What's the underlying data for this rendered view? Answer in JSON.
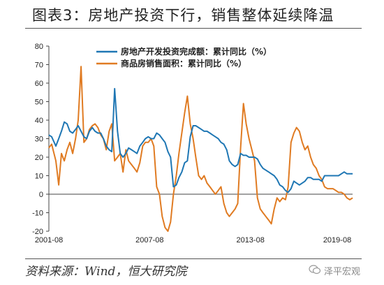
{
  "header": {
    "title": "图表3：房地产投资下行，销售整体延续降温"
  },
  "footer": {
    "source": "资料来源：Wind，恒大研究院",
    "watermark": "泽平宏观"
  },
  "chart_data": {
    "type": "line",
    "ylim": [
      -20,
      80
    ],
    "yticks": [
      -20,
      -10,
      0,
      10,
      20,
      30,
      40,
      50,
      60,
      70,
      80
    ],
    "xtick_labels": [
      "2001-08",
      "2007-08",
      "2013-08",
      "2019-08"
    ],
    "x_range": [
      2001.583,
      2019.667
    ],
    "grid": false,
    "legend_position": "top-center",
    "colors": {
      "investment": "#1f77b4",
      "sales": "#e07b22"
    },
    "series": [
      {
        "name": "房地产开发投资完成额：累计同比（%）",
        "color": "#1f77b4",
        "points": [
          [
            2001.58,
            32
          ],
          [
            2001.75,
            31
          ],
          [
            2002.0,
            26
          ],
          [
            2002.17,
            30
          ],
          [
            2002.33,
            34
          ],
          [
            2002.5,
            39
          ],
          [
            2002.67,
            38
          ],
          [
            2002.83,
            34
          ],
          [
            2003.0,
            33
          ],
          [
            2003.17,
            35
          ],
          [
            2003.33,
            37
          ],
          [
            2003.5,
            34
          ],
          [
            2003.67,
            31
          ],
          [
            2003.83,
            30
          ],
          [
            2004.0,
            34
          ],
          [
            2004.17,
            36
          ],
          [
            2004.33,
            34
          ],
          [
            2004.5,
            33
          ],
          [
            2004.67,
            33
          ],
          [
            2004.83,
            30
          ],
          [
            2005.0,
            26
          ],
          [
            2005.17,
            24
          ],
          [
            2005.33,
            23
          ],
          [
            2005.5,
            57
          ],
          [
            2005.67,
            34
          ],
          [
            2005.83,
            22
          ],
          [
            2006.0,
            20
          ],
          [
            2006.17,
            22
          ],
          [
            2006.33,
            25
          ],
          [
            2006.5,
            24
          ],
          [
            2006.67,
            23
          ],
          [
            2006.83,
            22
          ],
          [
            2007.0,
            26
          ],
          [
            2007.17,
            28
          ],
          [
            2007.33,
            30
          ],
          [
            2007.5,
            31
          ],
          [
            2007.67,
            30
          ],
          [
            2007.83,
            30
          ],
          [
            2008.0,
            33
          ],
          [
            2008.17,
            32
          ],
          [
            2008.33,
            30
          ],
          [
            2008.5,
            28
          ],
          [
            2008.67,
            23
          ],
          [
            2008.83,
            20
          ],
          [
            2009.0,
            4
          ],
          [
            2009.17,
            5
          ],
          [
            2009.33,
            9
          ],
          [
            2009.5,
            12
          ],
          [
            2009.67,
            17
          ],
          [
            2009.83,
            18
          ],
          [
            2010.0,
            31
          ],
          [
            2010.17,
            37
          ],
          [
            2010.33,
            37
          ],
          [
            2010.5,
            36
          ],
          [
            2010.67,
            35
          ],
          [
            2010.83,
            34
          ],
          [
            2011.0,
            34
          ],
          [
            2011.17,
            33
          ],
          [
            2011.33,
            32
          ],
          [
            2011.5,
            31
          ],
          [
            2011.67,
            30
          ],
          [
            2011.83,
            28
          ],
          [
            2012.0,
            27
          ],
          [
            2012.17,
            24
          ],
          [
            2012.33,
            18
          ],
          [
            2012.5,
            16
          ],
          [
            2012.67,
            15
          ],
          [
            2012.83,
            16
          ],
          [
            2013.0,
            22
          ],
          [
            2013.17,
            21
          ],
          [
            2013.33,
            21
          ],
          [
            2013.5,
            20
          ],
          [
            2013.67,
            20
          ],
          [
            2013.83,
            20
          ],
          [
            2014.0,
            19
          ],
          [
            2014.17,
            16
          ],
          [
            2014.33,
            14
          ],
          [
            2014.5,
            13
          ],
          [
            2014.67,
            12
          ],
          [
            2014.83,
            11
          ],
          [
            2015.0,
            10
          ],
          [
            2015.17,
            8
          ],
          [
            2015.33,
            5
          ],
          [
            2015.5,
            4
          ],
          [
            2015.67,
            2
          ],
          [
            2015.83,
            1
          ],
          [
            2016.0,
            3
          ],
          [
            2016.17,
            7
          ],
          [
            2016.33,
            6
          ],
          [
            2016.5,
            5
          ],
          [
            2016.67,
            6
          ],
          [
            2016.83,
            7
          ],
          [
            2017.0,
            9
          ],
          [
            2017.17,
            9
          ],
          [
            2017.33,
            8
          ],
          [
            2017.5,
            8
          ],
          [
            2017.67,
            8
          ],
          [
            2017.83,
            7
          ],
          [
            2018.0,
            10
          ],
          [
            2018.17,
            10
          ],
          [
            2018.33,
            10
          ],
          [
            2018.5,
            10
          ],
          [
            2018.67,
            10
          ],
          [
            2018.83,
            10
          ],
          [
            2019.0,
            11
          ],
          [
            2019.17,
            12
          ],
          [
            2019.33,
            11
          ],
          [
            2019.5,
            11
          ],
          [
            2019.67,
            11
          ]
        ]
      },
      {
        "name": "商品房销售面积：累计同比（%）",
        "color": "#e07b22",
        "points": [
          [
            2001.58,
            25
          ],
          [
            2001.75,
            27
          ],
          [
            2002.0,
            18
          ],
          [
            2002.17,
            5
          ],
          [
            2002.33,
            22
          ],
          [
            2002.5,
            18
          ],
          [
            2002.67,
            24
          ],
          [
            2002.83,
            28
          ],
          [
            2003.0,
            22
          ],
          [
            2003.17,
            30
          ],
          [
            2003.33,
            40
          ],
          [
            2003.5,
            69
          ],
          [
            2003.67,
            28
          ],
          [
            2003.83,
            30
          ],
          [
            2004.0,
            35
          ],
          [
            2004.17,
            37
          ],
          [
            2004.33,
            38
          ],
          [
            2004.5,
            36
          ],
          [
            2004.67,
            32
          ],
          [
            2004.83,
            30
          ],
          [
            2005.0,
            24
          ],
          [
            2005.17,
            34
          ],
          [
            2005.33,
            38
          ],
          [
            2005.5,
            18
          ],
          [
            2005.67,
            20
          ],
          [
            2005.83,
            22
          ],
          [
            2006.0,
            12
          ],
          [
            2006.17,
            24
          ],
          [
            2006.33,
            18
          ],
          [
            2006.5,
            16
          ],
          [
            2006.67,
            14
          ],
          [
            2006.83,
            12
          ],
          [
            2007.0,
            17
          ],
          [
            2007.17,
            26
          ],
          [
            2007.33,
            28
          ],
          [
            2007.5,
            28
          ],
          [
            2007.67,
            30
          ],
          [
            2007.83,
            26
          ],
          [
            2008.0,
            4
          ],
          [
            2008.17,
            0
          ],
          [
            2008.33,
            -12
          ],
          [
            2008.5,
            -18
          ],
          [
            2008.67,
            -20
          ],
          [
            2008.83,
            -15
          ],
          [
            2009.0,
            0
          ],
          [
            2009.17,
            10
          ],
          [
            2009.33,
            22
          ],
          [
            2009.5,
            33
          ],
          [
            2009.67,
            44
          ],
          [
            2009.83,
            53
          ],
          [
            2010.0,
            38
          ],
          [
            2010.17,
            30
          ],
          [
            2010.33,
            20
          ],
          [
            2010.5,
            10
          ],
          [
            2010.67,
            8
          ],
          [
            2010.83,
            10
          ],
          [
            2011.0,
            6
          ],
          [
            2011.17,
            4
          ],
          [
            2011.33,
            2
          ],
          [
            2011.5,
            0
          ],
          [
            2011.67,
            2
          ],
          [
            2011.83,
            4
          ],
          [
            2012.0,
            -5
          ],
          [
            2012.17,
            -10
          ],
          [
            2012.33,
            -12
          ],
          [
            2012.5,
            -10
          ],
          [
            2012.67,
            -8
          ],
          [
            2012.83,
            -5
          ],
          [
            2013.0,
            25
          ],
          [
            2013.17,
            49
          ],
          [
            2013.33,
            38
          ],
          [
            2013.5,
            30
          ],
          [
            2013.67,
            24
          ],
          [
            2013.83,
            18
          ],
          [
            2014.0,
            -2
          ],
          [
            2014.17,
            -8
          ],
          [
            2014.33,
            -10
          ],
          [
            2014.5,
            -12
          ],
          [
            2014.67,
            -14
          ],
          [
            2014.83,
            -16
          ],
          [
            2015.0,
            -8
          ],
          [
            2015.17,
            -2
          ],
          [
            2015.33,
            -4
          ],
          [
            2015.5,
            -2
          ],
          [
            2015.67,
            -3
          ],
          [
            2015.83,
            4
          ],
          [
            2016.0,
            28
          ],
          [
            2016.17,
            33
          ],
          [
            2016.33,
            36
          ],
          [
            2016.5,
            34
          ],
          [
            2016.67,
            28
          ],
          [
            2016.83,
            24
          ],
          [
            2017.0,
            26
          ],
          [
            2017.17,
            20
          ],
          [
            2017.33,
            16
          ],
          [
            2017.5,
            14
          ],
          [
            2017.67,
            10
          ],
          [
            2017.83,
            8
          ],
          [
            2018.0,
            4
          ],
          [
            2018.17,
            3
          ],
          [
            2018.33,
            3
          ],
          [
            2018.5,
            3
          ],
          [
            2018.67,
            2
          ],
          [
            2018.83,
            1
          ],
          [
            2019.0,
            1
          ],
          [
            2019.17,
            0
          ],
          [
            2019.33,
            -2
          ],
          [
            2019.5,
            -3
          ],
          [
            2019.67,
            -2
          ]
        ]
      }
    ]
  }
}
